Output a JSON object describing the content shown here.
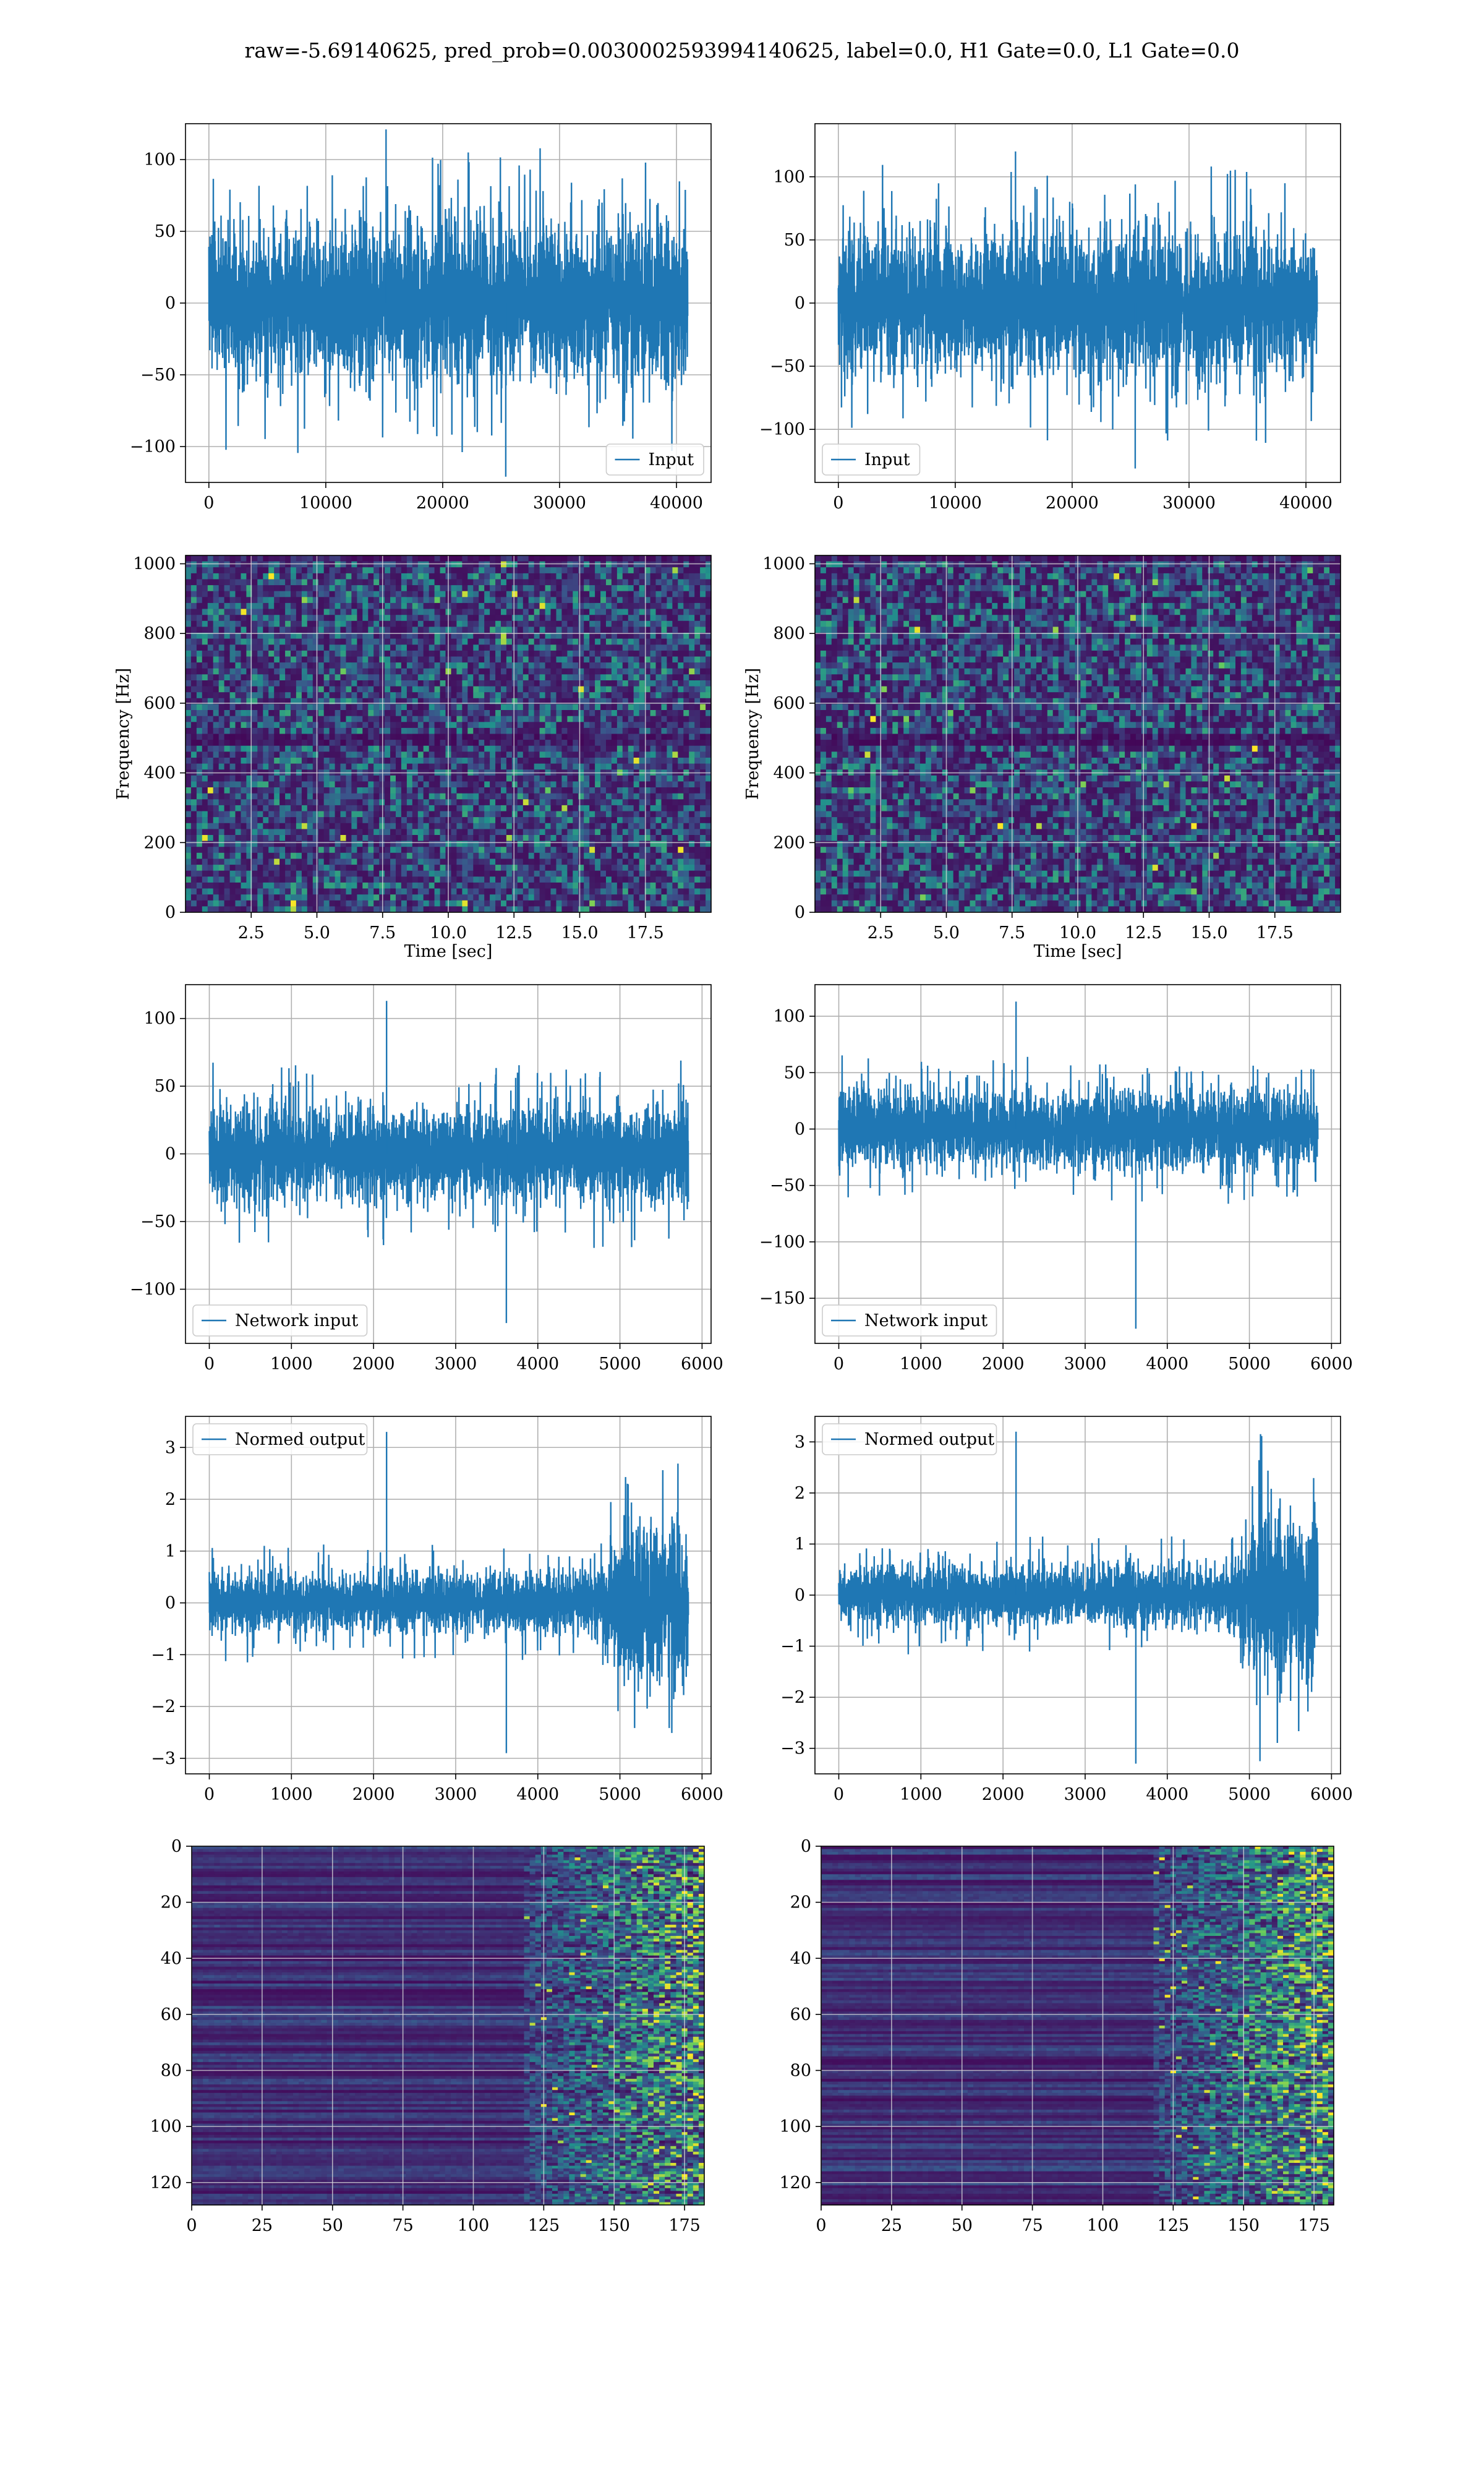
{
  "suptitle": "raw=-5.69140625, pred_prob=0.0030002593994140625, label=0.0, H1 Gate=0.0, L1 Gate=0.0",
  "colors": {
    "line": "#1f77b4",
    "grid": "#b0b0b0",
    "viridis_low": "#440154",
    "viridis_high": "#fde725"
  },
  "chart_data": [
    {
      "panel": "row1-left",
      "type": "line",
      "grid": true,
      "legend": [
        "Input"
      ],
      "legend_loc": "lower right",
      "xlim": [
        -2000,
        42960
      ],
      "ylim": [
        -125,
        125
      ],
      "xticks": [
        0,
        10000,
        20000,
        30000,
        40000
      ],
      "yticks": [
        -100,
        -50,
        0,
        50,
        100
      ],
      "series": [
        {
          "name": "Input",
          "n_samples": 40960,
          "envelope_upper": 70,
          "envelope_lower": -70,
          "max": 121,
          "min": -121
        }
      ]
    },
    {
      "panel": "row1-right",
      "type": "line",
      "grid": true,
      "legend": [
        "Input"
      ],
      "legend_loc": "lower left",
      "xlim": [
        -2000,
        42960
      ],
      "ylim": [
        -142,
        142
      ],
      "xticks": [
        0,
        10000,
        20000,
        30000,
        40000
      ],
      "yticks": [
        -100,
        -50,
        0,
        50,
        100
      ],
      "series": [
        {
          "name": "Input",
          "n_samples": 40960,
          "envelope_upper": 72,
          "envelope_lower": -72,
          "max": 120,
          "min": -131
        }
      ]
    },
    {
      "panel": "row2-left",
      "type": "heatmap",
      "grid": true,
      "colormap": "viridis",
      "xlabel": "Time [sec]",
      "ylabel": "Frequency [Hz]",
      "xlim": [
        0,
        20
      ],
      "ylim": [
        0,
        1024
      ],
      "xticks": [
        2.5,
        5.0,
        7.5,
        10.0,
        12.5,
        15.0,
        17.5
      ],
      "yticks": [
        0,
        200,
        400,
        600,
        800,
        1000
      ]
    },
    {
      "panel": "row2-right",
      "type": "heatmap",
      "grid": true,
      "colormap": "viridis",
      "xlabel": "Time [sec]",
      "ylabel": "Frequency [Hz]",
      "xlim": [
        0,
        20
      ],
      "ylim": [
        0,
        1024
      ],
      "xticks": [
        2.5,
        5.0,
        7.5,
        10.0,
        12.5,
        15.0,
        17.5
      ],
      "yticks": [
        0,
        200,
        400,
        600,
        800,
        1000
      ]
    },
    {
      "panel": "row3-left",
      "type": "line",
      "grid": true,
      "legend": [
        "Network input"
      ],
      "legend_loc": "lower left",
      "xlim": [
        -290,
        6110
      ],
      "ylim": [
        -140,
        125
      ],
      "xticks": [
        0,
        1000,
        2000,
        3000,
        4000,
        5000,
        6000
      ],
      "yticks": [
        -100,
        -50,
        0,
        50,
        100
      ],
      "series": [
        {
          "name": "Network input",
          "n_samples": 5834,
          "envelope_upper": 45,
          "envelope_lower": -45,
          "max": 113,
          "min": -125
        }
      ]
    },
    {
      "panel": "row3-right",
      "type": "line",
      "grid": true,
      "legend": [
        "Network input"
      ],
      "legend_loc": "lower left",
      "xlim": [
        -290,
        6110
      ],
      "ylim": [
        -190,
        128
      ],
      "xticks": [
        0,
        1000,
        2000,
        3000,
        4000,
        5000,
        6000
      ],
      "yticks": [
        -150,
        -100,
        -50,
        0,
        50,
        100
      ],
      "series": [
        {
          "name": "Network input",
          "n_samples": 5834,
          "envelope_upper": 45,
          "envelope_lower": -45,
          "max": 113,
          "min": -177
        }
      ]
    },
    {
      "panel": "row4-left",
      "type": "line",
      "grid": true,
      "legend": [
        "Normed output"
      ],
      "legend_loc": "upper left",
      "xlim": [
        -290,
        6110
      ],
      "ylim": [
        -3.3,
        3.6
      ],
      "xticks": [
        0,
        1000,
        2000,
        3000,
        4000,
        5000,
        6000
      ],
      "yticks": [
        -3,
        -2,
        -1,
        0,
        1,
        2,
        3
      ],
      "series": [
        {
          "name": "Normed output",
          "n_samples": 5834,
          "envelope_upper": 0.75,
          "envelope_lower": -0.75,
          "burst_start": 4700,
          "burst_envelope": 2.0,
          "max": 3.3,
          "min": -2.9
        }
      ]
    },
    {
      "panel": "row4-right",
      "type": "line",
      "grid": true,
      "legend": [
        "Normed output"
      ],
      "legend_loc": "upper left",
      "xlim": [
        -290,
        6110
      ],
      "ylim": [
        -3.5,
        3.5
      ],
      "xticks": [
        0,
        1000,
        2000,
        3000,
        4000,
        5000,
        6000
      ],
      "yticks": [
        -3,
        -2,
        -1,
        0,
        1,
        2,
        3
      ],
      "series": [
        {
          "name": "Normed output",
          "n_samples": 5834,
          "envelope_upper": 0.75,
          "envelope_lower": -0.75,
          "burst_start": 4700,
          "burst_envelope": 2.1,
          "max": 3.2,
          "min": -3.3
        }
      ]
    },
    {
      "panel": "row5-left",
      "type": "heatmap",
      "grid": true,
      "colormap": "viridis",
      "xlim": [
        0,
        182
      ],
      "ylim": [
        128,
        0
      ],
      "xticks": [
        0,
        25,
        50,
        75,
        100,
        125,
        150,
        175
      ],
      "yticks": [
        0,
        20,
        40,
        60,
        80,
        100,
        120
      ],
      "hot_region_x_from": 118
    },
    {
      "panel": "row5-right",
      "type": "heatmap",
      "grid": true,
      "colormap": "viridis",
      "xlim": [
        0,
        182
      ],
      "ylim": [
        128,
        0
      ],
      "xticks": [
        0,
        25,
        50,
        75,
        100,
        125,
        150,
        175
      ],
      "yticks": [
        0,
        20,
        40,
        60,
        80,
        100,
        120
      ],
      "hot_region_x_from": 118
    }
  ]
}
